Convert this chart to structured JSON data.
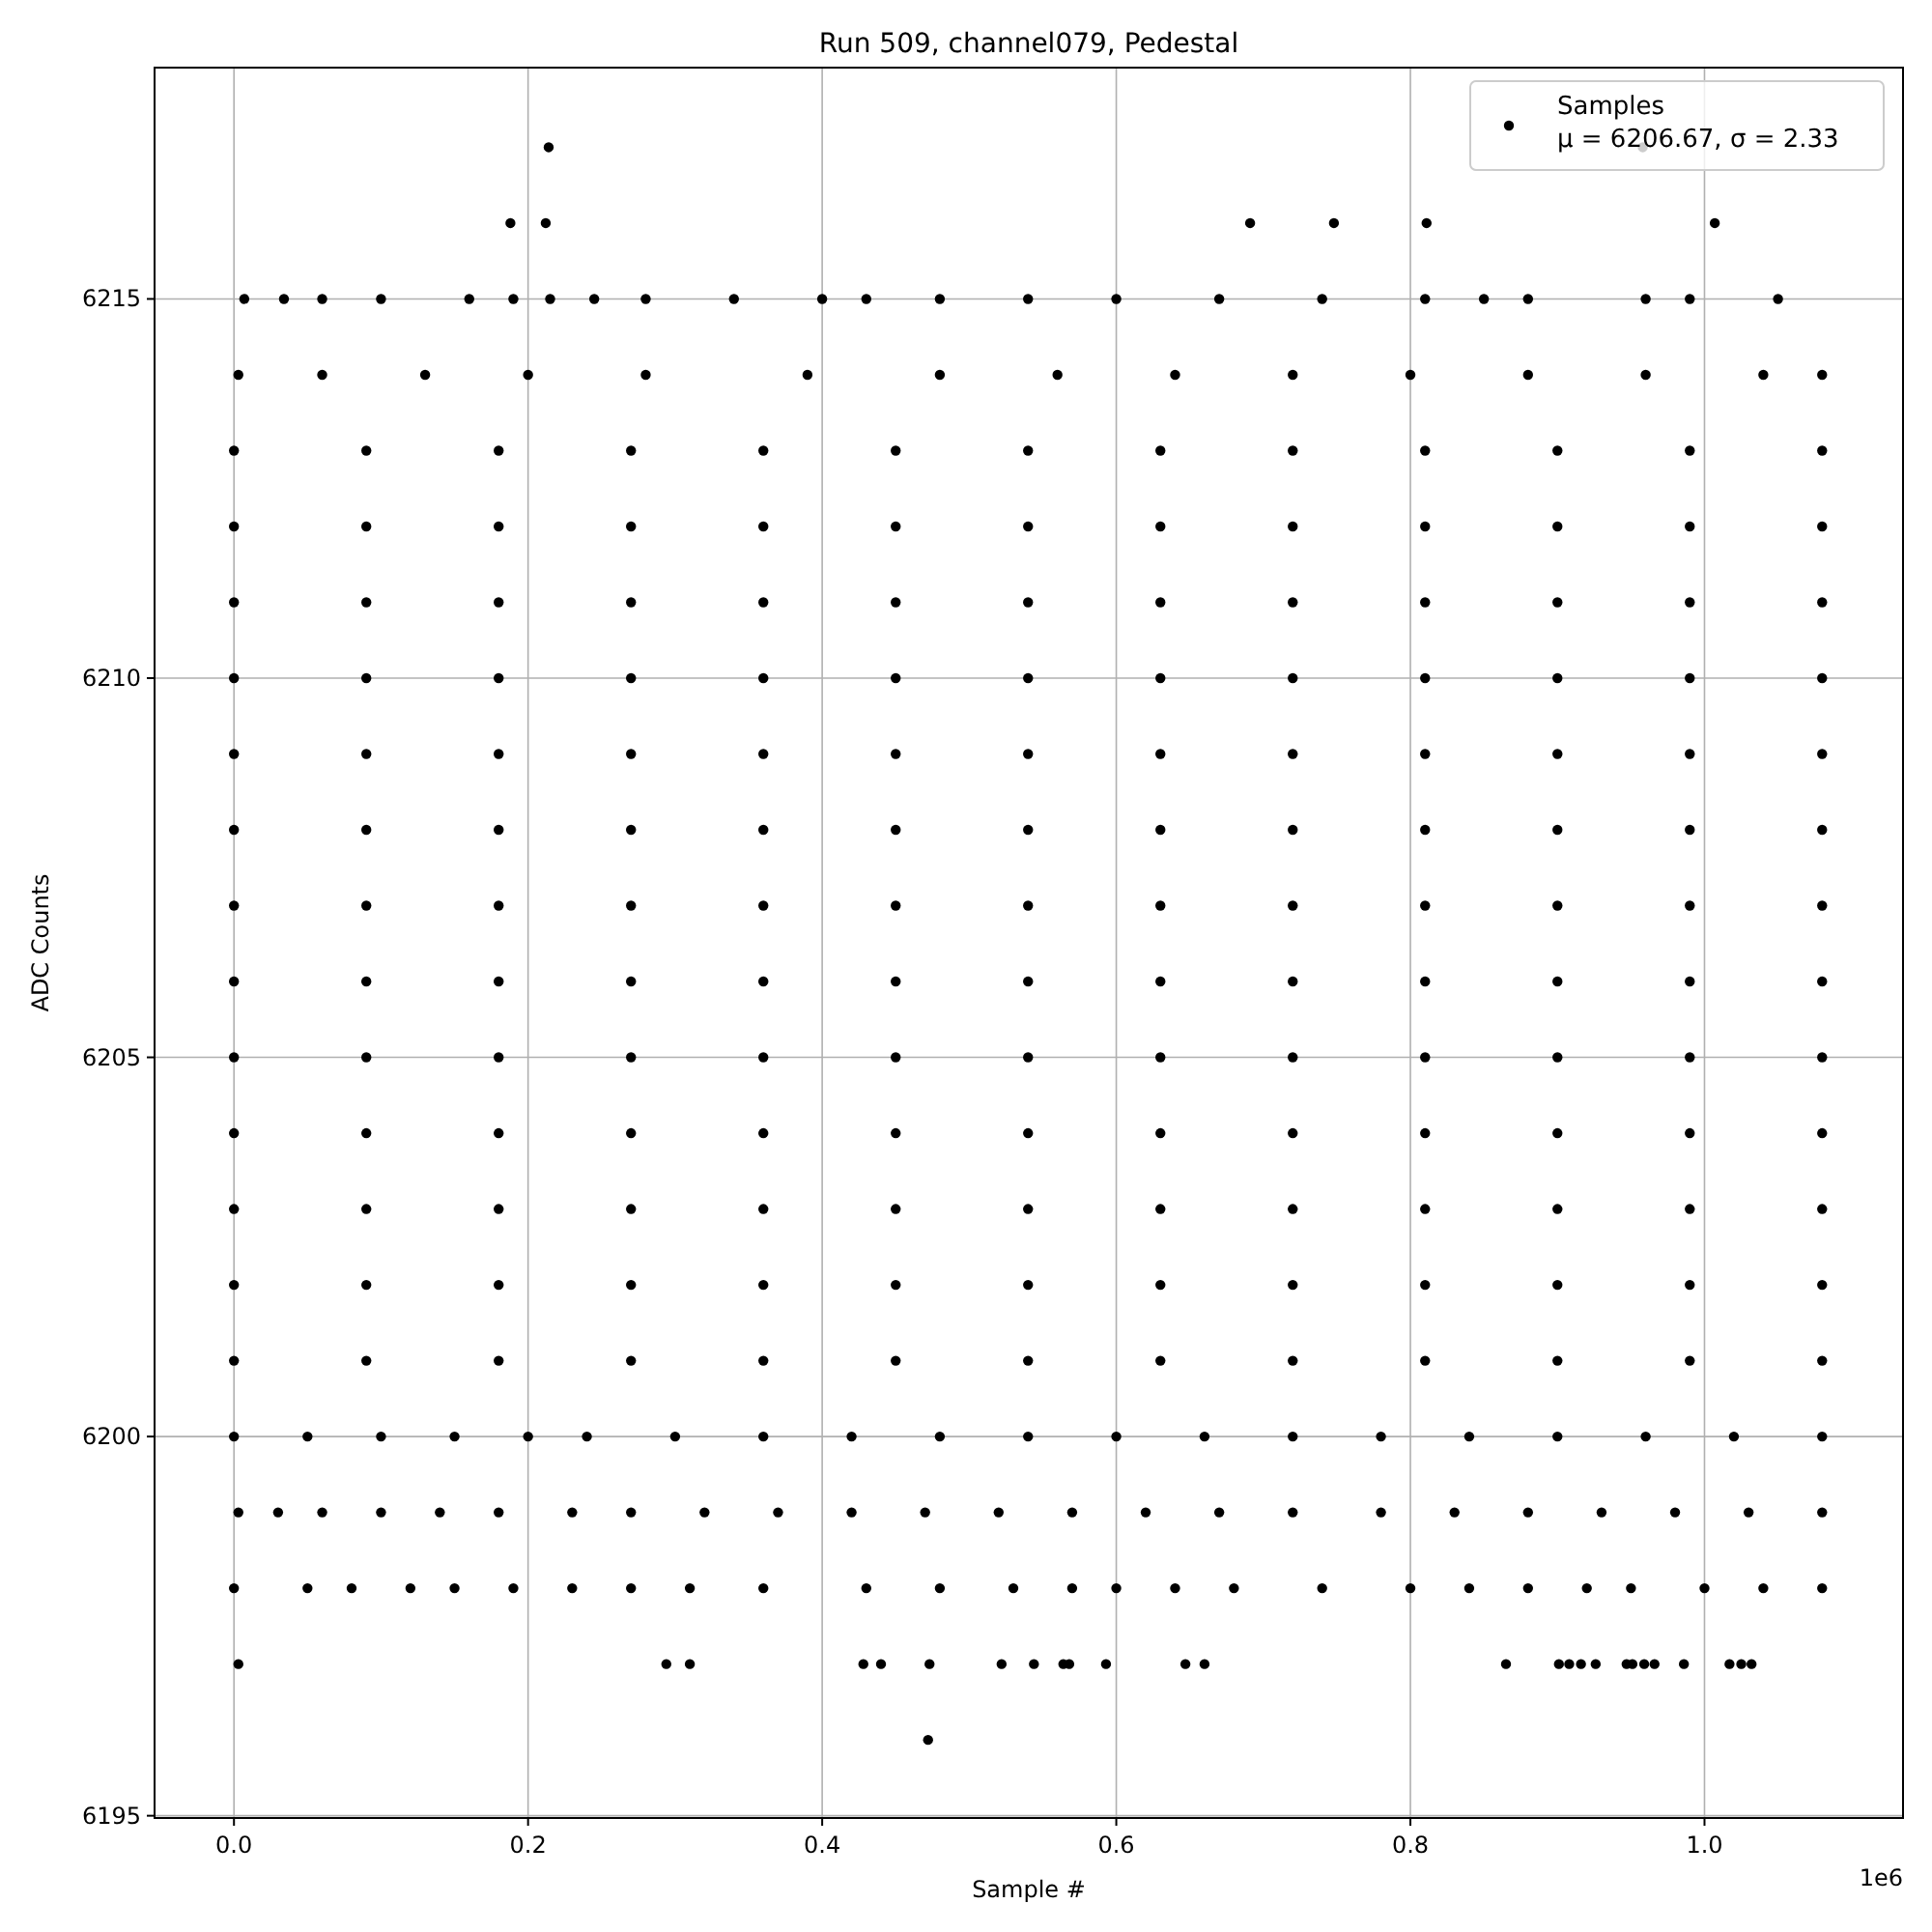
{
  "chart_data": {
    "type": "scatter",
    "title": "Run 509, channel079, Pedestal",
    "xlabel": "Sample #",
    "ylabel": "ADC Counts",
    "annotations": [
      "1e6"
    ],
    "xlim": [
      -0.054,
      1.135
    ],
    "ylim": [
      6194.97,
      6218.05
    ],
    "xticks": [
      {
        "value": 0,
        "label": "0.0"
      },
      0.2,
      0.4,
      0.6,
      0.8,
      {
        "value": 1,
        "label": "1.0"
      }
    ],
    "yticks": [
      6195,
      6200,
      6205,
      6210,
      6215
    ],
    "grid": true,
    "legend": "top right",
    "marker": "circle",
    "series": [
      {
        "name": "Samples\nμ = 6206.67, σ = 2.33",
        "color": "#000000",
        "x": [
          0.214,
          0.958,
          0.188,
          0.212,
          0.691,
          0.748,
          0.811,
          1.007,
          0.007,
          0.034,
          0.06,
          0.1,
          0.16,
          0.19,
          0.215,
          0.245,
          0.28,
          0.34,
          0.4,
          0.43,
          0.48,
          0.54,
          0.6,
          0.67,
          0.74,
          0.81,
          0.85,
          0.88,
          0.96,
          0.99,
          1.05,
          0.003,
          0.06,
          0.13,
          0.2,
          0.28,
          0.39,
          0.48,
          0.56,
          0.64,
          0.72,
          0.8,
          0.88,
          0.96,
          1.04,
          1.08,
          0,
          0.09,
          0.18,
          0.27,
          0.36,
          0.45,
          0.54,
          0.63,
          0.72,
          0.81,
          0.9,
          0.99,
          1.08,
          0,
          0.09,
          0.18,
          0.27,
          0.36,
          0.45,
          0.54,
          0.63,
          0.72,
          0.81,
          0.9,
          0.99,
          1.08,
          0,
          0.09,
          0.18,
          0.27,
          0.36,
          0.45,
          0.54,
          0.63,
          0.72,
          0.81,
          0.9,
          0.99,
          1.08,
          0,
          0.09,
          0.18,
          0.27,
          0.36,
          0.45,
          0.54,
          0.63,
          0.72,
          0.81,
          0.9,
          0.99,
          1.08,
          0,
          0.09,
          0.18,
          0.27,
          0.36,
          0.45,
          0.54,
          0.63,
          0.72,
          0.81,
          0.9,
          0.99,
          1.08,
          0,
          0.09,
          0.18,
          0.27,
          0.36,
          0.45,
          0.54,
          0.63,
          0.72,
          0.81,
          0.9,
          0.99,
          1.08,
          0,
          0.09,
          0.18,
          0.27,
          0.36,
          0.45,
          0.54,
          0.63,
          0.72,
          0.81,
          0.9,
          0.99,
          1.08,
          0,
          0.09,
          0.18,
          0.27,
          0.36,
          0.45,
          0.54,
          0.63,
          0.72,
          0.81,
          0.9,
          0.99,
          1.08,
          0,
          0.09,
          0.18,
          0.27,
          0.36,
          0.45,
          0.54,
          0.63,
          0.72,
          0.81,
          0.9,
          0.99,
          1.08,
          0,
          0.09,
          0.18,
          0.27,
          0.36,
          0.45,
          0.54,
          0.63,
          0.72,
          0.81,
          0.9,
          0.99,
          1.08,
          0,
          0.09,
          0.18,
          0.27,
          0.36,
          0.45,
          0.54,
          0.63,
          0.72,
          0.81,
          0.9,
          0.99,
          1.08,
          0,
          0.09,
          0.18,
          0.27,
          0.36,
          0.45,
          0.54,
          0.63,
          0.72,
          0.81,
          0.9,
          0.99,
          1.08,
          0,
          0.09,
          0.18,
          0.27,
          0.36,
          0.45,
          0.54,
          0.63,
          0.72,
          0.81,
          0.9,
          0.99,
          1.08,
          0,
          0.05,
          0.1,
          0.15,
          0.2,
          0.24,
          0.3,
          0.36,
          0.42,
          0.48,
          0.54,
          0.6,
          0.66,
          0.72,
          0.78,
          0.84,
          0.9,
          0.96,
          1.02,
          1.08,
          0.003,
          0.03,
          0.06,
          0.1,
          0.14,
          0.18,
          0.23,
          0.27,
          0.32,
          0.37,
          0.42,
          0.47,
          0.52,
          0.57,
          0.62,
          0.67,
          0.72,
          0.78,
          0.83,
          0.88,
          0.93,
          0.98,
          1.03,
          1.08,
          0,
          0.05,
          0.08,
          0.12,
          0.15,
          0.19,
          0.23,
          0.27,
          0.31,
          0.36,
          0.43,
          0.48,
          0.53,
          0.57,
          0.6,
          0.64,
          0.68,
          0.74,
          0.8,
          0.84,
          0.88,
          0.92,
          0.95,
          1,
          1.04,
          1.08,
          0.003,
          0.294,
          0.31,
          0.428,
          0.44,
          0.473,
          0.522,
          0.544,
          0.564,
          0.568,
          0.593,
          0.647,
          0.66,
          0.865,
          0.901,
          0.908,
          0.916,
          0.926,
          0.947,
          0.951,
          0.959,
          0.966,
          0.986,
          1.017,
          1.025,
          1.032,
          0.472
        ],
        "values": [
          6217,
          6217,
          6216,
          6216,
          6216,
          6216,
          6216,
          6216,
          6215,
          6215,
          6215,
          6215,
          6215,
          6215,
          6215,
          6215,
          6215,
          6215,
          6215,
          6215,
          6215,
          6215,
          6215,
          6215,
          6215,
          6215,
          6215,
          6215,
          6215,
          6215,
          6215,
          6214,
          6214,
          6214,
          6214,
          6214,
          6214,
          6214,
          6214,
          6214,
          6214,
          6214,
          6214,
          6214,
          6214,
          6214,
          6213,
          6213,
          6213,
          6213,
          6213,
          6213,
          6213,
          6213,
          6213,
          6213,
          6213,
          6213,
          6213,
          6212,
          6212,
          6212,
          6212,
          6212,
          6212,
          6212,
          6212,
          6212,
          6212,
          6212,
          6212,
          6212,
          6211,
          6211,
          6211,
          6211,
          6211,
          6211,
          6211,
          6211,
          6211,
          6211,
          6211,
          6211,
          6211,
          6210,
          6210,
          6210,
          6210,
          6210,
          6210,
          6210,
          6210,
          6210,
          6210,
          6210,
          6210,
          6210,
          6209,
          6209,
          6209,
          6209,
          6209,
          6209,
          6209,
          6209,
          6209,
          6209,
          6209,
          6209,
          6209,
          6208,
          6208,
          6208,
          6208,
          6208,
          6208,
          6208,
          6208,
          6208,
          6208,
          6208,
          6208,
          6208,
          6207,
          6207,
          6207,
          6207,
          6207,
          6207,
          6207,
          6207,
          6207,
          6207,
          6207,
          6207,
          6207,
          6206,
          6206,
          6206,
          6206,
          6206,
          6206,
          6206,
          6206,
          6206,
          6206,
          6206,
          6206,
          6206,
          6205,
          6205,
          6205,
          6205,
          6205,
          6205,
          6205,
          6205,
          6205,
          6205,
          6205,
          6205,
          6205,
          6204,
          6204,
          6204,
          6204,
          6204,
          6204,
          6204,
          6204,
          6204,
          6204,
          6204,
          6204,
          6204,
          6203,
          6203,
          6203,
          6203,
          6203,
          6203,
          6203,
          6203,
          6203,
          6203,
          6203,
          6203,
          6203,
          6202,
          6202,
          6202,
          6202,
          6202,
          6202,
          6202,
          6202,
          6202,
          6202,
          6202,
          6202,
          6202,
          6201,
          6201,
          6201,
          6201,
          6201,
          6201,
          6201,
          6201,
          6201,
          6201,
          6201,
          6201,
          6201,
          6200,
          6200,
          6200,
          6200,
          6200,
          6200,
          6200,
          6200,
          6200,
          6200,
          6200,
          6200,
          6200,
          6200,
          6200,
          6200,
          6200,
          6200,
          6200,
          6200,
          6199,
          6199,
          6199,
          6199,
          6199,
          6199,
          6199,
          6199,
          6199,
          6199,
          6199,
          6199,
          6199,
          6199,
          6199,
          6199,
          6199,
          6199,
          6199,
          6199,
          6199,
          6199,
          6199,
          6199,
          6198,
          6198,
          6198,
          6198,
          6198,
          6198,
          6198,
          6198,
          6198,
          6198,
          6198,
          6198,
          6198,
          6198,
          6198,
          6198,
          6198,
          6198,
          6198,
          6198,
          6198,
          6198,
          6198,
          6198,
          6198,
          6198,
          6197,
          6197,
          6197,
          6197,
          6197,
          6197,
          6197,
          6197,
          6197,
          6197,
          6197,
          6197,
          6197,
          6197,
          6197,
          6197,
          6197,
          6197,
          6197,
          6197,
          6197,
          6197,
          6197,
          6197,
          6197,
          6197,
          6196
        ]
      }
    ]
  }
}
